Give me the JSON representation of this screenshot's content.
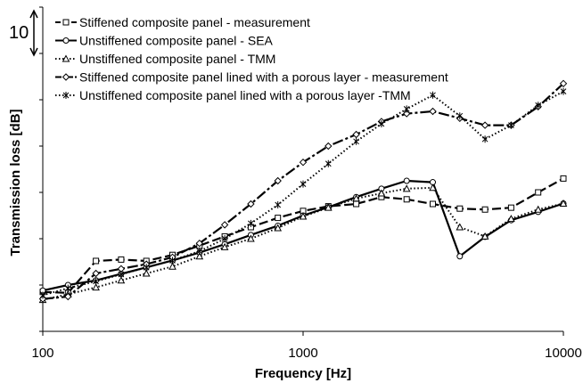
{
  "chart_data": {
    "type": "line",
    "title": "",
    "xlabel": "Frequency [Hz]",
    "ylabel": "Transmission loss [dB]",
    "x_scale": "log",
    "xlim": [
      100,
      10000
    ],
    "x_ticks": [
      "100",
      "1000",
      "10000"
    ],
    "y_ticks_labeled": false,
    "y_grid_step_db": 10,
    "scale_bar_label": "10",
    "ylim": [
      0,
      70
    ],
    "grid": false,
    "legend_position": "top-left",
    "x": [
      100,
      125,
      160,
      200,
      250,
      315,
      400,
      500,
      630,
      800,
      1000,
      1250,
      1600,
      2000,
      2500,
      3150,
      4000,
      5000,
      6300,
      8000,
      10000
    ],
    "series": [
      {
        "name": "Stiffened composite panel - measurement",
        "color": "#000000",
        "marker": "square",
        "dash": "long-dash",
        "values": [
          8.5,
          8.3,
          15.2,
          15.5,
          15.2,
          16.5,
          18.5,
          20.5,
          22.5,
          24.5,
          26.0,
          27.0,
          27.5,
          29.0,
          28.5,
          27.5,
          26.5,
          26.3,
          26.7,
          30.0,
          33.0
        ]
      },
      {
        "name": "Unstiffened composite panel - SEA",
        "color": "#000000",
        "marker": "circle",
        "dash": "solid",
        "values": [
          8.8,
          10.0,
          11.0,
          12.4,
          13.8,
          15.3,
          17.0,
          18.8,
          20.8,
          22.8,
          25.0,
          26.8,
          29.0,
          30.8,
          32.5,
          32.2,
          16.2,
          20.4,
          24.0,
          25.8,
          27.6
        ]
      },
      {
        "name": "Unstiffened composite panel - TMM",
        "color": "#000000",
        "marker": "triangle",
        "dash": "dotted",
        "values": [
          6.8,
          8.0,
          9.5,
          11.0,
          12.5,
          14.0,
          16.2,
          18.2,
          20.0,
          22.3,
          24.8,
          26.7,
          28.7,
          29.8,
          30.8,
          31.0,
          22.5,
          20.5,
          24.3,
          26.3,
          27.6
        ]
      },
      {
        "name": "Stiffened composite panel lined with a porous layer - measurement",
        "color": "#000000",
        "marker": "diamond",
        "dash": "dash-dot",
        "values": [
          7.0,
          7.5,
          12.5,
          13.5,
          14.5,
          16.0,
          19.0,
          23.0,
          27.5,
          32.5,
          36.5,
          40.0,
          42.5,
          45.3,
          47.0,
          47.5,
          46.0,
          44.5,
          44.5,
          48.5,
          53.5
        ]
      },
      {
        "name": "Unstiffened composite panel lined with a porous layer -TMM",
        "color": "#000000",
        "marker": "star",
        "dash": "dotted",
        "values": [
          7.8,
          9.3,
          10.8,
          12.3,
          13.8,
          15.3,
          17.3,
          20.0,
          23.3,
          27.3,
          31.8,
          36.2,
          41.0,
          44.8,
          48.0,
          51.0,
          46.5,
          41.5,
          44.5,
          48.8,
          51.8
        ]
      }
    ]
  }
}
